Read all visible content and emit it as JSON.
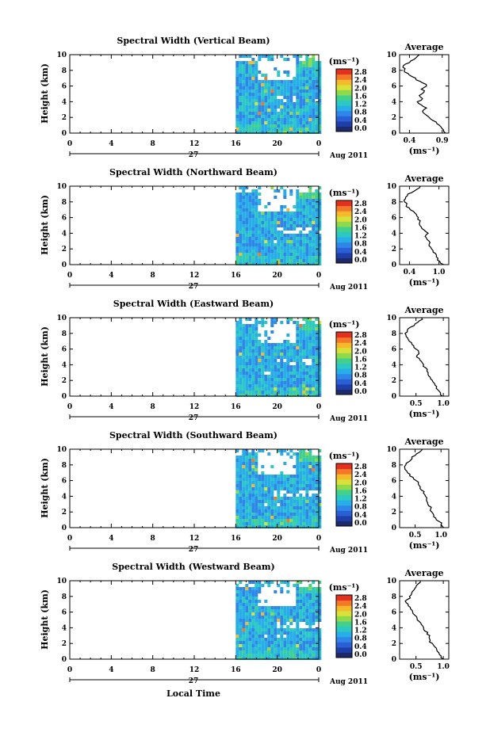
{
  "figure": {
    "panels": [
      {
        "title": "Spectral Width (Vertical Beam)",
        "avg_ticks": [
          "0.4",
          "0.9"
        ],
        "avg_xlim": [
          0.25,
          1.0
        ],
        "avg_profile": [
          [
            0,
            0.95
          ],
          [
            0.4,
            0.92
          ],
          [
            0.8,
            0.88
          ],
          [
            1.2,
            0.82
          ],
          [
            1.6,
            0.76
          ],
          [
            2.0,
            0.7
          ],
          [
            2.4,
            0.64
          ],
          [
            2.8,
            0.6
          ],
          [
            3.2,
            0.66
          ],
          [
            3.6,
            0.58
          ],
          [
            4.0,
            0.52
          ],
          [
            4.4,
            0.6
          ],
          [
            4.8,
            0.55
          ],
          [
            5.2,
            0.62
          ],
          [
            5.6,
            0.58
          ],
          [
            6.0,
            0.66
          ],
          [
            6.4,
            0.6
          ],
          [
            6.8,
            0.5
          ],
          [
            7.2,
            0.44
          ],
          [
            7.6,
            0.38
          ],
          [
            8.0,
            0.32
          ],
          [
            8.4,
            0.3
          ],
          [
            8.8,
            0.34
          ],
          [
            9.2,
            0.42
          ],
          [
            9.6,
            0.5
          ],
          [
            10.0,
            0.55
          ]
        ]
      },
      {
        "title": "Spectral Width (Northward Beam)",
        "avg_ticks": [
          "0.4",
          "1.0"
        ],
        "avg_xlim": [
          0.2,
          1.2
        ],
        "avg_profile": [
          [
            0,
            1.1
          ],
          [
            0.4,
            1.02
          ],
          [
            0.8,
            0.98
          ],
          [
            1.2,
            0.95
          ],
          [
            1.6,
            0.88
          ],
          [
            2.0,
            0.85
          ],
          [
            2.4,
            0.8
          ],
          [
            2.8,
            0.82
          ],
          [
            3.2,
            0.76
          ],
          [
            3.6,
            0.72
          ],
          [
            4.0,
            0.78
          ],
          [
            4.4,
            0.7
          ],
          [
            4.8,
            0.64
          ],
          [
            5.2,
            0.6
          ],
          [
            5.6,
            0.62
          ],
          [
            6.0,
            0.58
          ],
          [
            6.4,
            0.54
          ],
          [
            6.8,
            0.48
          ],
          [
            7.2,
            0.4
          ],
          [
            7.6,
            0.34
          ],
          [
            8.0,
            0.3
          ],
          [
            8.4,
            0.32
          ],
          [
            8.8,
            0.36
          ],
          [
            9.2,
            0.45
          ],
          [
            9.6,
            0.55
          ],
          [
            10.0,
            0.62
          ]
        ]
      },
      {
        "title": "Spectral Width (Eastward Beam)",
        "avg_ticks": [
          "0.5",
          "1.0"
        ],
        "avg_xlim": [
          0.2,
          1.1
        ],
        "avg_profile": [
          [
            0,
            0.98
          ],
          [
            0.4,
            0.95
          ],
          [
            0.8,
            0.9
          ],
          [
            1.2,
            0.88
          ],
          [
            1.6,
            0.84
          ],
          [
            2.0,
            0.8
          ],
          [
            2.4,
            0.76
          ],
          [
            2.8,
            0.72
          ],
          [
            3.2,
            0.7
          ],
          [
            3.6,
            0.68
          ],
          [
            4.0,
            0.64
          ],
          [
            4.4,
            0.6
          ],
          [
            4.8,
            0.56
          ],
          [
            5.2,
            0.52
          ],
          [
            5.6,
            0.55
          ],
          [
            6.0,
            0.5
          ],
          [
            6.4,
            0.46
          ],
          [
            6.8,
            0.42
          ],
          [
            7.2,
            0.36
          ],
          [
            7.6,
            0.32
          ],
          [
            8.0,
            0.3
          ],
          [
            8.4,
            0.34
          ],
          [
            8.8,
            0.4
          ],
          [
            9.2,
            0.48
          ],
          [
            9.6,
            0.56
          ],
          [
            10.0,
            0.6
          ]
        ]
      },
      {
        "title": "Spectral Width (Southward Beam)",
        "avg_ticks": [
          "0.5",
          "1.0"
        ],
        "avg_xlim": [
          0.2,
          1.15
        ],
        "avg_profile": [
          [
            0,
            1.05
          ],
          [
            0.4,
            1.0
          ],
          [
            0.8,
            0.96
          ],
          [
            1.2,
            0.9
          ],
          [
            1.6,
            0.86
          ],
          [
            2.0,
            0.82
          ],
          [
            2.4,
            0.8
          ],
          [
            2.8,
            0.76
          ],
          [
            3.2,
            0.74
          ],
          [
            3.6,
            0.72
          ],
          [
            4.0,
            0.7
          ],
          [
            4.4,
            0.66
          ],
          [
            4.8,
            0.62
          ],
          [
            5.2,
            0.6
          ],
          [
            5.6,
            0.56
          ],
          [
            6.0,
            0.52
          ],
          [
            6.4,
            0.46
          ],
          [
            6.8,
            0.4
          ],
          [
            7.2,
            0.34
          ],
          [
            7.6,
            0.3
          ],
          [
            8.0,
            0.32
          ],
          [
            8.4,
            0.38
          ],
          [
            8.8,
            0.44
          ],
          [
            9.2,
            0.5
          ],
          [
            9.6,
            0.58
          ],
          [
            10.0,
            0.64
          ]
        ]
      },
      {
        "title": "Spectral Width (Westward Beam)",
        "avg_ticks": [
          "0.5",
          "1.0"
        ],
        "avg_xlim": [
          0.2,
          1.1
        ],
        "avg_profile": [
          [
            0,
            1.0
          ],
          [
            0.4,
            0.96
          ],
          [
            0.8,
            0.92
          ],
          [
            1.2,
            0.88
          ],
          [
            1.6,
            0.84
          ],
          [
            2.0,
            0.8
          ],
          [
            2.4,
            0.76
          ],
          [
            2.8,
            0.74
          ],
          [
            3.2,
            0.7
          ],
          [
            3.6,
            0.66
          ],
          [
            4.0,
            0.64
          ],
          [
            4.4,
            0.6
          ],
          [
            4.8,
            0.56
          ],
          [
            5.2,
            0.52
          ],
          [
            5.6,
            0.48
          ],
          [
            6.0,
            0.44
          ],
          [
            6.4,
            0.4
          ],
          [
            6.8,
            0.36
          ],
          [
            7.2,
            0.32
          ],
          [
            7.6,
            0.34
          ],
          [
            8.0,
            0.38
          ],
          [
            8.4,
            0.42
          ],
          [
            8.8,
            0.46
          ],
          [
            9.2,
            0.5
          ],
          [
            9.6,
            0.54
          ],
          [
            10.0,
            0.58
          ]
        ]
      }
    ],
    "y_label": "Height (km)",
    "avg_title": "Average",
    "avg_xlabel": "(ms⁻¹)",
    "colorbar_label": "(ms⁻¹)",
    "colorbar_ticks": [
      "2.8",
      "2.4",
      "2.0",
      "1.6",
      "1.2",
      "0.8",
      "0.4",
      "0.0"
    ],
    "x_ticks": [
      "0",
      "4",
      "8",
      "12",
      "16",
      "20",
      "0"
    ],
    "y_ticks": [
      "0",
      "2",
      "4",
      "6",
      "8",
      "10"
    ],
    "day_label": "27",
    "date_label": "Aug 2011",
    "x_label": "Local Time"
  },
  "chart_data": [
    {
      "type": "heatmap",
      "title": "Spectral Width (Vertical Beam)",
      "ylabel": "Height (km)",
      "ylim": [
        0,
        10
      ],
      "xlim": [
        0,
        24
      ],
      "x_ticks": [
        "0",
        "4",
        "8",
        "12",
        "16",
        "20",
        "0"
      ],
      "data_start_hour": 16,
      "colorbar": {
        "label": "(ms⁻¹)",
        "ticks": [
          2.8,
          2.4,
          2.0,
          1.6,
          1.2,
          0.8,
          0.4,
          0.0
        ]
      }
    },
    {
      "type": "heatmap",
      "title": "Spectral Width (Northward Beam)",
      "ylabel": "Height (km)",
      "ylim": [
        0,
        10
      ],
      "xlim": [
        0,
        24
      ],
      "data_start_hour": 16
    },
    {
      "type": "heatmap",
      "title": "Spectral Width (Eastward Beam)",
      "ylabel": "Height (km)",
      "ylim": [
        0,
        10
      ],
      "xlim": [
        0,
        24
      ],
      "data_start_hour": 16
    },
    {
      "type": "heatmap",
      "title": "Spectral Width (Southward Beam)",
      "ylabel": "Height (km)",
      "ylim": [
        0,
        10
      ],
      "xlim": [
        0,
        24
      ],
      "data_start_hour": 16
    },
    {
      "type": "heatmap",
      "title": "Spectral Width (Westward Beam)",
      "ylabel": "Height (km)",
      "ylim": [
        0,
        10
      ],
      "xlim": [
        0,
        24
      ],
      "data_start_hour": 16,
      "xlabel": "Local Time"
    }
  ]
}
